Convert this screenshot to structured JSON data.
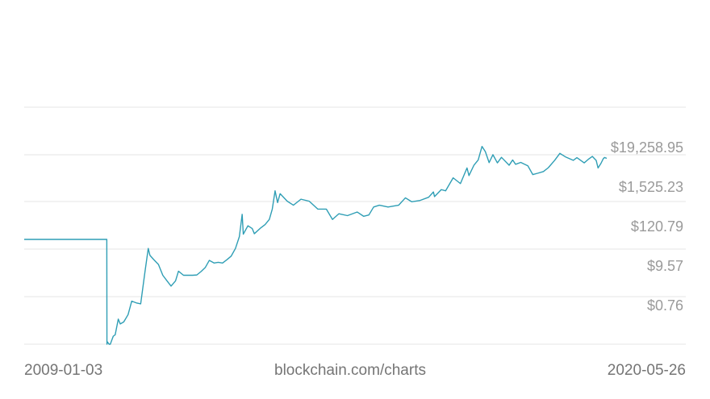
{
  "chart_data": {
    "type": "line",
    "y_scale": "log",
    "y_ticks": [
      {
        "value": 19258.95,
        "label": "$19,258.95"
      },
      {
        "value": 1525.23,
        "label": "$1,525.23"
      },
      {
        "value": 120.79,
        "label": "$120.79"
      },
      {
        "value": 9.57,
        "label": "$9.57"
      },
      {
        "value": 0.76,
        "label": "$0.76"
      }
    ],
    "ylim": [
      0.06,
      242000
    ],
    "xlim": [
      "2009-01-03",
      "2020-05-26"
    ],
    "x_labels": {
      "start": "2009-01-03",
      "end": "2020-05-26"
    },
    "source_label": "blockchain.com/charts",
    "grid": true,
    "line_color": "#2f9eb5",
    "series": [
      {
        "x": [
          "2009-01-03",
          "2010-08-16",
          "2010-08-17",
          "2010-08-20",
          "2010-09-01",
          "2010-09-10",
          "2010-10-01",
          "2010-10-15",
          "2010-11-06",
          "2010-11-20",
          "2010-12-15",
          "2011-01-15",
          "2011-02-10",
          "2011-03-15",
          "2011-04-15",
          "2011-05-15",
          "2011-06-08",
          "2011-06-20",
          "2011-07-15",
          "2011-08-20",
          "2011-09-20",
          "2011-10-20",
          "2011-11-18",
          "2011-12-20",
          "2012-01-10",
          "2012-02-15",
          "2012-03-20",
          "2012-04-20",
          "2012-05-20",
          "2012-06-20",
          "2012-07-20",
          "2012-08-17",
          "2012-09-20",
          "2012-10-20",
          "2012-11-20",
          "2012-12-20",
          "2013-01-20",
          "2013-02-20",
          "2013-03-20",
          "2013-04-09",
          "2013-04-17",
          "2013-05-20",
          "2013-06-20",
          "2013-07-05",
          "2013-08-20",
          "2013-09-20",
          "2013-10-20",
          "2013-11-10",
          "2013-11-30",
          "2013-12-18",
          "2014-01-05",
          "2014-02-25",
          "2014-04-10",
          "2014-06-03",
          "2014-08-01",
          "2014-10-01",
          "2014-12-01",
          "2015-01-14",
          "2015-03-01",
          "2015-05-01",
          "2015-07-10",
          "2015-08-25",
          "2015-10-01",
          "2015-11-04",
          "2015-12-15",
          "2016-02-15",
          "2016-05-01",
          "2016-06-18",
          "2016-08-02",
          "2016-10-01",
          "2016-12-01",
          "2017-01-04",
          "2017-01-12",
          "2017-03-01",
          "2017-04-01",
          "2017-05-25",
          "2017-07-16",
          "2017-09-01",
          "2017-09-15",
          "2017-10-20",
          "2017-11-20",
          "2017-12-17",
          "2018-01-10",
          "2018-02-06",
          "2018-03-05",
          "2018-04-06",
          "2018-05-05",
          "2018-06-29",
          "2018-07-24",
          "2018-08-14",
          "2018-09-20",
          "2018-11-10",
          "2018-12-15",
          "2019-01-20",
          "2019-03-01",
          "2019-04-05",
          "2019-05-20",
          "2019-06-26",
          "2019-08-05",
          "2019-09-30",
          "2019-10-26",
          "2019-12-17",
          "2020-01-15",
          "2020-02-13",
          "2020-03-12",
          "2020-03-25",
          "2020-04-15",
          "2020-04-30",
          "2020-05-10",
          "2020-05-26"
        ],
        "y": [
          50,
          50,
          0.06,
          0.07,
          0.06,
          0.06,
          0.1,
          0.11,
          0.3,
          0.22,
          0.25,
          0.4,
          0.95,
          0.85,
          0.8,
          6,
          28,
          18,
          14,
          10,
          5,
          3.5,
          2.5,
          3.5,
          6.5,
          5,
          5,
          5,
          5.1,
          6.4,
          8.3,
          13,
          11,
          11.5,
          11,
          13.5,
          17,
          28,
          60,
          250,
          70,
          120,
          100,
          72,
          105,
          130,
          180,
          350,
          1130,
          530,
          940,
          580,
          450,
          660,
          580,
          350,
          350,
          180,
          260,
          230,
          290,
          220,
          240,
          400,
          450,
          400,
          450,
          720,
          560,
          610,
          750,
          1050,
          780,
          1220,
          1130,
          2600,
          1800,
          4900,
          3000,
          5800,
          8200,
          19500,
          14000,
          6900,
          11500,
          6800,
          9700,
          5850,
          8200,
          6200,
          7000,
          5600,
          3200,
          3500,
          3900,
          5000,
          8000,
          12500,
          10000,
          8000,
          9500,
          6800,
          8500,
          10300,
          7900,
          4900,
          6600,
          8700,
          9600,
          9100
        ]
      }
    ]
  }
}
